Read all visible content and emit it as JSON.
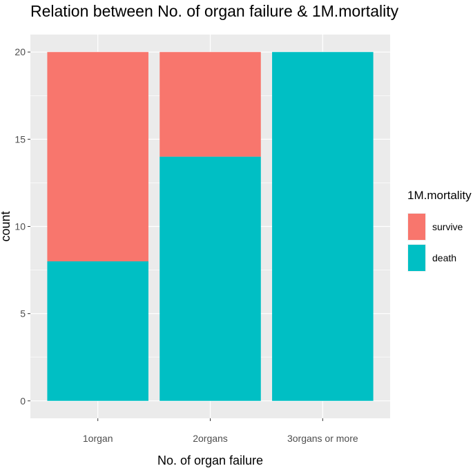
{
  "chart_data": {
    "type": "bar",
    "stacked": true,
    "title": "Relation between No. of organ failure & 1M.mortality",
    "xlabel": "No. of organ failure",
    "ylabel": "count",
    "categories": [
      "1organ",
      "2organs",
      "3organs or more"
    ],
    "ylim": [
      0,
      20
    ],
    "yticks": [
      0,
      5,
      10,
      15,
      20
    ],
    "grid": true,
    "legend": {
      "title": "1M.mortality",
      "position": "right"
    },
    "series": [
      {
        "name": "survive",
        "color": "#F8766D",
        "values": [
          12,
          6,
          0
        ]
      },
      {
        "name": "death",
        "color": "#00BFC4",
        "values": [
          8,
          14,
          20
        ]
      }
    ]
  }
}
